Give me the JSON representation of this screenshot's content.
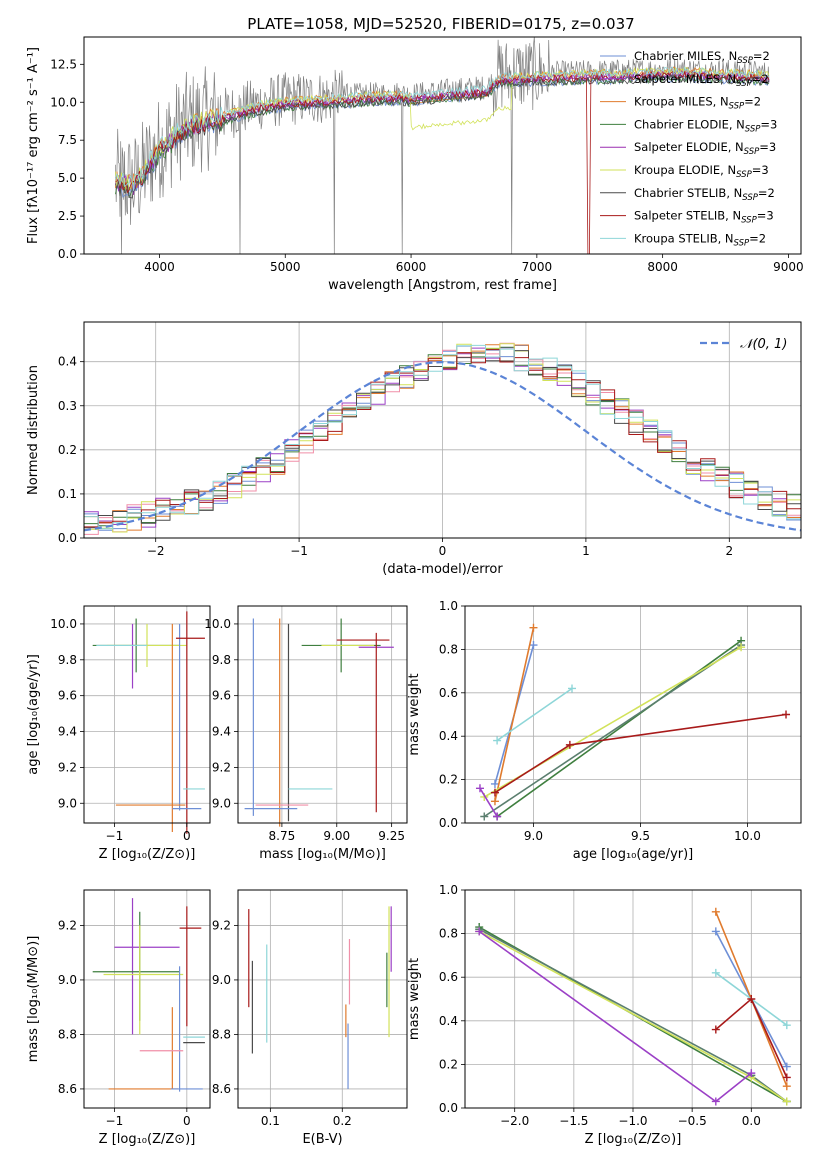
{
  "figure": {
    "title": "PLATE=1058, MJD=52520, FIBERID=0175, z=0.037",
    "colors": [
      "#6e8fd6",
      "#9b40c6",
      "#e07b2e",
      "#3f7f3f",
      "#9a2fb0",
      "#d2e25a",
      "#4a4a4a",
      "#a81a1a",
      "#8ed6d8"
    ]
  },
  "chart_data": [
    {
      "id": "spectrum",
      "type": "line",
      "xlabel": "wavelength [Angstrom, rest frame]",
      "ylabel": "Flux [fλ10⁻¹⁷ erg cm⁻² s⁻¹ A⁻¹]",
      "xlim": [
        3400,
        9100
      ],
      "ylim": [
        0,
        14.3
      ],
      "xticks": [
        4000,
        5000,
        6000,
        7000,
        8000,
        9000
      ],
      "yticks": [
        0.0,
        2.5,
        5.0,
        7.5,
        10.0,
        12.5
      ],
      "grid": false,
      "legend_position": "top-right",
      "observed_color": "#808080",
      "observed_profile": {
        "x": [
          3650,
          3800,
          4000,
          4200,
          4500,
          4800,
          5000,
          5300,
          5600,
          5900,
          6000,
          6300,
          6600,
          6700,
          7000,
          7400,
          7800,
          8100,
          8400,
          8700,
          8850
        ],
        "y": [
          4.8,
          4.6,
          7.0,
          8.5,
          9.2,
          9.9,
          10.2,
          10.3,
          10.5,
          10.6,
          10.5,
          10.8,
          11.0,
          11.8,
          11.9,
          12.0,
          12.1,
          12.2,
          12.1,
          12.0,
          11.9
        ]
      },
      "series": [
        {
          "name": "Chabrier MILES, N_SSP=2"
        },
        {
          "name": "Salpeter MILES, N_SSP=2"
        },
        {
          "name": "Kroupa MILES, N_SSP=2"
        },
        {
          "name": "Chabrier ELODIE, N_SSP=3"
        },
        {
          "name": "Salpeter ELODIE, N_SSP=3"
        },
        {
          "name": "Kroupa ELODIE, N_SSP=3"
        },
        {
          "name": "Chabrier STELIB, N_SSP=2"
        },
        {
          "name": "Salpeter STELIB, N_SSP=3"
        },
        {
          "name": "Kroupa STELIB, N_SSP=2"
        }
      ],
      "legend_labels": [
        {
          "base": "Chabrier MILES, N",
          "sub": "SSP",
          "suffix": "=2"
        },
        {
          "base": "Salpeter MILES, N",
          "sub": "SSP",
          "suffix": "=2"
        },
        {
          "base": "Kroupa MILES, N",
          "sub": "SSP",
          "suffix": "=2"
        },
        {
          "base": "Chabrier ELODIE, N",
          "sub": "SSP",
          "suffix": "=3"
        },
        {
          "base": "Salpeter ELODIE, N",
          "sub": "SSP",
          "suffix": "=3"
        },
        {
          "base": "Kroupa ELODIE, N",
          "sub": "SSP",
          "suffix": "=3"
        },
        {
          "base": "Chabrier STELIB, N",
          "sub": "SSP",
          "suffix": "=2"
        },
        {
          "base": "Salpeter STELIB, N",
          "sub": "SSP",
          "suffix": "=3"
        },
        {
          "base": "Kroupa STELIB, N",
          "sub": "SSP",
          "suffix": "=2"
        }
      ]
    },
    {
      "id": "residuals",
      "type": "line",
      "xlabel": "(data-model)/error",
      "ylabel": "Normed distribution",
      "xlim": [
        -2.5,
        2.5
      ],
      "ylim": [
        0,
        0.49
      ],
      "xticks": [
        -2,
        -1,
        0,
        1,
        2
      ],
      "yticks": [
        0.0,
        0.1,
        0.2,
        0.3,
        0.4
      ],
      "grid": true,
      "legend_position": "top-right",
      "legend_label": "𝒩(0, 1)",
      "gaussian": {
        "mu": 0,
        "sigma": 1,
        "color": "#5b84d6"
      },
      "hist_bin_width": 0.1,
      "hist_colors": [
        "#6e8fd6",
        "#9b40c6",
        "#e07b2e",
        "#3f7f3f",
        "#f08fa8",
        "#d2e25a",
        "#4a4a4a",
        "#a81a1a",
        "#8ed6d8"
      ]
    },
    {
      "id": "age_vs_Z",
      "type": "errorbar",
      "xlabel": "Z [log₁₀(Z/Z⊙)]",
      "ylabel": "age  [log₁₀(age/yr)]",
      "xlim": [
        -1.42,
        0.32
      ],
      "ylim": [
        8.89,
        10.1
      ],
      "xticks": [
        -1,
        0
      ],
      "yticks": [
        9.0,
        9.2,
        9.4,
        9.6,
        9.8,
        10.0
      ],
      "grid": true,
      "bars": [
        {
          "x": -0.7,
          "y": 9.88,
          "xerr": 0.6,
          "yerr": 0.15,
          "color": "#3f7f3f"
        },
        {
          "x": -0.55,
          "y": 9.88,
          "xerr": 0.55,
          "yerr": 0.12,
          "color": "#d2e25a"
        },
        {
          "x": -0.75,
          "y": 9.82,
          "xerr": 0.0,
          "yerr": 0.18,
          "color": "#9b40c6"
        },
        {
          "x": -0.9,
          "y": 9.88,
          "xerr": 0.35,
          "yerr": 0.0,
          "color": "#8ed6d8"
        },
        {
          "x": -0.1,
          "y": 9.48,
          "xerr": 0.0,
          "yerr": 0.52,
          "color": "#6e8fd6"
        },
        {
          "x": -0.2,
          "y": 9.42,
          "xerr": 0.0,
          "yerr": 0.58,
          "color": "#e07b2e"
        },
        {
          "x": 0.0,
          "y": 9.45,
          "xerr": 0.0,
          "yerr": 0.62,
          "color": "#a81a1a"
        },
        {
          "x": 0.05,
          "y": 9.92,
          "xerr": 0.2,
          "yerr": 0.0,
          "color": "#a81a1a"
        },
        {
          "x": -0.5,
          "y": 8.99,
          "xerr": 0.48,
          "yerr": 0.0,
          "color": "#e07b2e"
        },
        {
          "x": 0.1,
          "y": 9.08,
          "xerr": 0.15,
          "yerr": 0.0,
          "color": "#8ed6d8"
        },
        {
          "x": 0.0,
          "y": 8.97,
          "xerr": 0.2,
          "yerr": 0.0,
          "color": "#6e8fd6"
        }
      ]
    },
    {
      "id": "age_vs_mass",
      "type": "errorbar",
      "xlabel": "mass [log₁₀(M/M⊙)]",
      "ylabel": "",
      "xlim": [
        8.55,
        9.32
      ],
      "ylim": [
        8.89,
        10.1
      ],
      "xticks": [
        8.75,
        9.0,
        9.25
      ],
      "yticks": [
        9.0,
        9.2,
        9.4,
        9.6,
        9.8,
        10.0
      ],
      "grid": true,
      "bars": [
        {
          "x": 9.02,
          "y": 9.88,
          "xerr": 0.18,
          "yerr": 0.15,
          "color": "#3f7f3f"
        },
        {
          "x": 9.05,
          "y": 9.88,
          "xerr": 0.12,
          "yerr": 0.0,
          "color": "#d2e25a"
        },
        {
          "x": 9.12,
          "y": 9.91,
          "xerr": 0.12,
          "yerr": 0.0,
          "color": "#a81a1a"
        },
        {
          "x": 9.18,
          "y": 9.87,
          "xerr": 0.08,
          "yerr": 0.0,
          "color": "#9b40c6"
        },
        {
          "x": 8.62,
          "y": 9.48,
          "xerr": 0.0,
          "yerr": 0.55,
          "color": "#6e8fd6"
        },
        {
          "x": 8.74,
          "y": 9.45,
          "xerr": 0.0,
          "yerr": 0.58,
          "color": "#e07b2e"
        },
        {
          "x": 8.78,
          "y": 9.45,
          "xerr": 0.0,
          "yerr": 0.55,
          "color": "#4a4a4a"
        },
        {
          "x": 9.18,
          "y": 9.45,
          "xerr": 0.0,
          "yerr": 0.5,
          "color": "#a81a1a"
        },
        {
          "x": 8.88,
          "y": 9.08,
          "xerr": 0.1,
          "yerr": 0.0,
          "color": "#8ed6d8"
        },
        {
          "x": 8.75,
          "y": 8.99,
          "xerr": 0.12,
          "yerr": 0.0,
          "color": "#f08fa8"
        },
        {
          "x": 8.7,
          "y": 8.97,
          "xerr": 0.12,
          "yerr": 0.0,
          "color": "#6e8fd6"
        }
      ]
    },
    {
      "id": "weight_vs_age",
      "type": "line",
      "xlabel": "age  [log₁₀(age/yr)]",
      "ylabel": "mass weight",
      "xlim": [
        8.68,
        10.25
      ],
      "ylim": [
        0.0,
        1.0
      ],
      "xticks": [
        9.0,
        9.5,
        10.0
      ],
      "yticks": [
        0.0,
        0.2,
        0.4,
        0.6,
        0.8,
        1.0
      ],
      "grid": true,
      "series": [
        {
          "color": "#6e8fd6",
          "x": [
            8.82,
            9.0
          ],
          "y": [
            0.18,
            0.82
          ]
        },
        {
          "color": "#e07b2e",
          "x": [
            8.82,
            9.0
          ],
          "y": [
            0.1,
            0.9
          ]
        },
        {
          "color": "#8ed6d8",
          "x": [
            8.83,
            9.18
          ],
          "y": [
            0.38,
            0.62
          ]
        },
        {
          "color": "#3f7f3f",
          "x": [
            8.83,
            9.97
          ],
          "y": [
            0.03,
            0.84
          ]
        },
        {
          "color": "#5b7f6f",
          "x": [
            8.77,
            9.97
          ],
          "y": [
            0.03,
            0.82
          ]
        },
        {
          "color": "#d2e25a",
          "x": [
            8.77,
            9.97
          ],
          "y": [
            0.12,
            0.81
          ]
        },
        {
          "color": "#9b40c6",
          "x": [
            8.75,
            8.83
          ],
          "y": [
            0.16,
            0.03
          ]
        },
        {
          "color": "#a81a1a",
          "x": [
            8.82,
            9.17,
            10.18
          ],
          "y": [
            0.14,
            0.36,
            0.5
          ]
        }
      ]
    },
    {
      "id": "mass_vs_Z",
      "type": "errorbar",
      "xlabel": "Z [log₁₀(Z/Z⊙)]",
      "ylabel": "mass [log₁₀(M/M⊙)]",
      "xlim": [
        -1.42,
        0.32
      ],
      "ylim": [
        8.53,
        9.33
      ],
      "xticks": [
        -1,
        0
      ],
      "yticks": [
        8.6,
        8.8,
        9.0,
        9.2
      ],
      "grid": true,
      "bars": [
        {
          "x": -0.55,
          "y": 9.12,
          "xerr": 0.45,
          "yerr": 0.0,
          "color": "#9b40c6"
        },
        {
          "x": -0.75,
          "y": 9.05,
          "xerr": 0.0,
          "yerr": 0.25,
          "color": "#9b40c6"
        },
        {
          "x": -0.7,
          "y": 9.03,
          "xerr": 0.6,
          "yerr": 0.0,
          "color": "#3f7f3f"
        },
        {
          "x": -0.65,
          "y": 9.05,
          "xerr": 0.0,
          "yerr": 0.2,
          "color": "#3f7f3f"
        },
        {
          "x": -0.6,
          "y": 9.02,
          "xerr": 0.55,
          "yerr": 0.0,
          "color": "#d2e25a"
        },
        {
          "x": -0.65,
          "y": 9.0,
          "xerr": 0.0,
          "yerr": 0.2,
          "color": "#d2e25a"
        },
        {
          "x": 0.05,
          "y": 9.19,
          "xerr": 0.15,
          "yerr": 0.0,
          "color": "#a81a1a"
        },
        {
          "x": 0.0,
          "y": 9.05,
          "xerr": 0.0,
          "yerr": 0.22,
          "color": "#a81a1a"
        },
        {
          "x": -0.1,
          "y": 8.82,
          "xerr": 0.0,
          "yerr": 0.23,
          "color": "#6e8fd6"
        },
        {
          "x": -0.2,
          "y": 8.75,
          "xerr": 0.0,
          "yerr": 0.15,
          "color": "#e07b2e"
        },
        {
          "x": -0.35,
          "y": 8.74,
          "xerr": 0.3,
          "yerr": 0.0,
          "color": "#f08fa8"
        },
        {
          "x": 0.1,
          "y": 8.77,
          "xerr": 0.15,
          "yerr": 0.0,
          "color": "#4a4a4a"
        },
        {
          "x": 0.1,
          "y": 8.79,
          "xerr": 0.15,
          "yerr": 0.0,
          "color": "#8ed6d8"
        },
        {
          "x": -0.6,
          "y": 8.6,
          "xerr": 0.48,
          "yerr": 0.0,
          "color": "#e07b2e"
        },
        {
          "x": 0.0,
          "y": 8.6,
          "xerr": 0.22,
          "yerr": 0.0,
          "color": "#6e8fd6"
        }
      ]
    },
    {
      "id": "mass_vs_ebv",
      "type": "errorbar",
      "xlabel": "E(B-V)",
      "ylabel": "",
      "xlim": [
        0.055,
        0.29
      ],
      "ylim": [
        8.53,
        9.33
      ],
      "xticks": [
        0.1,
        0.2
      ],
      "yticks": [
        8.6,
        8.8,
        9.0,
        9.2
      ],
      "grid": true,
      "bars": [
        {
          "x": 0.07,
          "y": 9.08,
          "xerr": 0.0,
          "yerr": 0.18,
          "color": "#a81a1a"
        },
        {
          "x": 0.075,
          "y": 8.9,
          "xerr": 0.0,
          "yerr": 0.17,
          "color": "#4a4a4a"
        },
        {
          "x": 0.095,
          "y": 8.95,
          "xerr": 0.0,
          "yerr": 0.18,
          "color": "#8ed6d8"
        },
        {
          "x": 0.205,
          "y": 8.85,
          "xerr": 0.0,
          "yerr": 0.06,
          "color": "#e07b2e"
        },
        {
          "x": 0.208,
          "y": 8.72,
          "xerr": 0.0,
          "yerr": 0.12,
          "color": "#6e8fd6"
        },
        {
          "x": 0.21,
          "y": 9.03,
          "xerr": 0.0,
          "yerr": 0.12,
          "color": "#f08fa8"
        },
        {
          "x": 0.265,
          "y": 9.03,
          "xerr": 0.0,
          "yerr": 0.24,
          "color": "#d2e25a"
        },
        {
          "x": 0.268,
          "y": 9.15,
          "xerr": 0.0,
          "yerr": 0.12,
          "color": "#9b40c6"
        },
        {
          "x": 0.262,
          "y": 9.0,
          "xerr": 0.0,
          "yerr": 0.1,
          "color": "#3f7f3f"
        }
      ]
    },
    {
      "id": "weight_vs_Z",
      "type": "line",
      "xlabel": "Z [log₁₀(Z/Z⊙)]",
      "ylabel": "mass weight",
      "xlim": [
        -2.42,
        0.42
      ],
      "ylim": [
        0.0,
        1.0
      ],
      "xticks": [
        -2.0,
        -1.5,
        -1.0,
        -0.5,
        0.0
      ],
      "yticks": [
        0.0,
        0.2,
        0.4,
        0.6,
        0.8,
        1.0
      ],
      "grid": true,
      "series": [
        {
          "color": "#6e8fd6",
          "x": [
            -0.3,
            0.3
          ],
          "y": [
            0.81,
            0.19
          ]
        },
        {
          "color": "#e07b2e",
          "x": [
            -0.3,
            0.3
          ],
          "y": [
            0.9,
            0.1
          ]
        },
        {
          "color": "#8ed6d8",
          "x": [
            -0.3,
            0.3
          ],
          "y": [
            0.62,
            0.38
          ]
        },
        {
          "color": "#3f7f3f",
          "x": [
            -2.3,
            0.3
          ],
          "y": [
            0.83,
            0.03
          ]
        },
        {
          "color": "#5b7f6f",
          "x": [
            -2.3,
            0.0,
            0.3
          ],
          "y": [
            0.82,
            0.15,
            0.03
          ]
        },
        {
          "color": "#d2e25a",
          "x": [
            -2.3,
            0.0,
            0.3
          ],
          "y": [
            0.81,
            0.14,
            0.03
          ]
        },
        {
          "color": "#9b40c6",
          "x": [
            -2.3,
            -0.3,
            0.0
          ],
          "y": [
            0.81,
            0.03,
            0.16
          ]
        },
        {
          "color": "#a81a1a",
          "x": [
            -0.3,
            0.0,
            0.3
          ],
          "y": [
            0.36,
            0.5,
            0.14
          ]
        }
      ]
    }
  ]
}
